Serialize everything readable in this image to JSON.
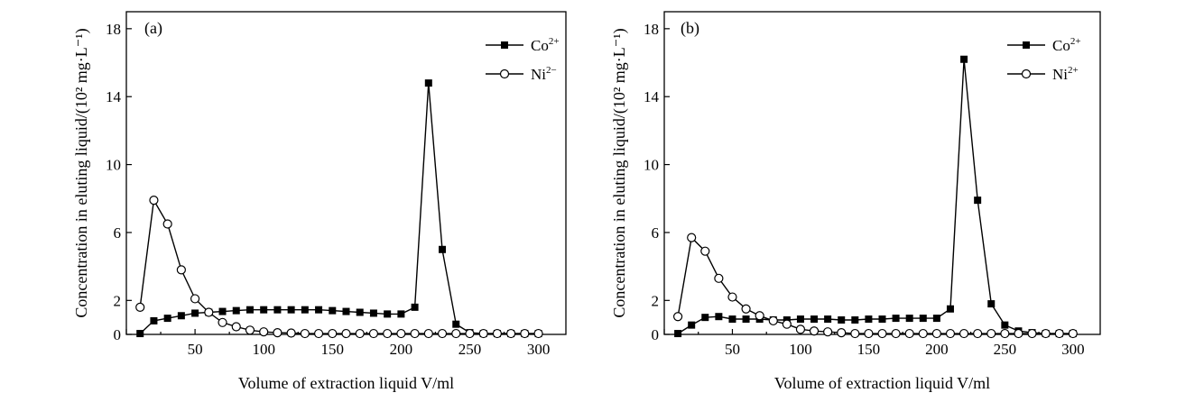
{
  "chart_data": [
    {
      "type": "line",
      "panel_label": "(a)",
      "xlabel": "Volume of extraction liquid V/ml",
      "ylabel": "Concentration in eluting liquid/(10² mg·L⁻¹)",
      "xlim": [
        0,
        320
      ],
      "ylim": [
        0,
        19
      ],
      "xticks": [
        0,
        50,
        100,
        150,
        200,
        250,
        300
      ],
      "yticks": [
        0,
        2,
        6,
        10,
        14,
        18
      ],
      "yticklabels": [
        "0",
        "2",
        "6",
        "10",
        "14",
        "18"
      ],
      "grid": false,
      "legend_position": "top-right",
      "series": [
        {
          "name": "Co2+",
          "legend_base": "Co",
          "legend_sup": "2+",
          "marker": "filled-square",
          "x": [
            10,
            20,
            30,
            40,
            50,
            60,
            70,
            80,
            90,
            100,
            110,
            120,
            130,
            140,
            150,
            160,
            170,
            180,
            190,
            200,
            210,
            220,
            230,
            240,
            250,
            260,
            270,
            280,
            290,
            300
          ],
          "y": [
            0.05,
            0.8,
            0.95,
            1.1,
            1.25,
            1.3,
            1.35,
            1.4,
            1.45,
            1.45,
            1.45,
            1.45,
            1.45,
            1.45,
            1.4,
            1.35,
            1.3,
            1.25,
            1.2,
            1.2,
            1.6,
            14.8,
            5.0,
            0.6,
            0.1,
            0.05,
            0.05,
            0.05,
            0.05,
            0.05
          ]
        },
        {
          "name": "Ni2−",
          "legend_base": "Ni",
          "legend_sup": "2−",
          "marker": "open-circle",
          "x": [
            10,
            20,
            30,
            40,
            50,
            60,
            70,
            80,
            90,
            100,
            110,
            120,
            130,
            140,
            150,
            160,
            170,
            180,
            190,
            200,
            210,
            220,
            230,
            240,
            250,
            260,
            270,
            280,
            290,
            300
          ],
          "y": [
            1.6,
            7.9,
            6.5,
            3.8,
            2.1,
            1.3,
            0.7,
            0.45,
            0.25,
            0.15,
            0.1,
            0.08,
            0.05,
            0.05,
            0.05,
            0.05,
            0.05,
            0.05,
            0.05,
            0.05,
            0.05,
            0.05,
            0.05,
            0.05,
            0.05,
            0.05,
            0.05,
            0.05,
            0.05,
            0.05
          ]
        }
      ]
    },
    {
      "type": "line",
      "panel_label": "(b)",
      "xlabel": "Volume of extraction liquid V/ml",
      "ylabel": "Concentration in eluting liquid/(10² mg·L⁻¹)",
      "xlim": [
        0,
        320
      ],
      "ylim": [
        0,
        19
      ],
      "xticks": [
        0,
        50,
        100,
        150,
        200,
        250,
        300
      ],
      "yticks": [
        0,
        2,
        6,
        10,
        14,
        18
      ],
      "yticklabels": [
        "0",
        "2",
        "6",
        "10",
        "14",
        "18"
      ],
      "grid": false,
      "legend_position": "top-right",
      "series": [
        {
          "name": "Co2+",
          "legend_base": "Co",
          "legend_sup": "2+",
          "marker": "filled-square",
          "x": [
            10,
            20,
            30,
            40,
            50,
            60,
            70,
            80,
            90,
            100,
            110,
            120,
            130,
            140,
            150,
            160,
            170,
            180,
            190,
            200,
            210,
            220,
            230,
            240,
            250,
            260,
            270,
            280,
            290,
            300
          ],
          "y": [
            0.05,
            0.55,
            1.0,
            1.05,
            0.9,
            0.9,
            0.9,
            0.85,
            0.85,
            0.9,
            0.9,
            0.9,
            0.85,
            0.85,
            0.9,
            0.9,
            0.95,
            0.95,
            0.95,
            0.95,
            1.5,
            16.2,
            7.9,
            1.8,
            0.55,
            0.2,
            0.1,
            0.05,
            0.05,
            0.05
          ]
        },
        {
          "name": "Ni2+",
          "legend_base": "Ni",
          "legend_sup": "2+",
          "marker": "open-circle",
          "x": [
            10,
            20,
            30,
            40,
            50,
            60,
            70,
            80,
            90,
            100,
            110,
            120,
            130,
            140,
            150,
            160,
            170,
            180,
            190,
            200,
            210,
            220,
            230,
            240,
            250,
            260,
            270,
            280,
            290,
            300
          ],
          "y": [
            1.05,
            5.7,
            4.9,
            3.3,
            2.2,
            1.5,
            1.1,
            0.8,
            0.6,
            0.3,
            0.2,
            0.15,
            0.1,
            0.05,
            0.05,
            0.05,
            0.05,
            0.05,
            0.05,
            0.05,
            0.05,
            0.05,
            0.05,
            0.05,
            0.05,
            0.05,
            0.05,
            0.05,
            0.05,
            0.05
          ]
        }
      ]
    }
  ]
}
